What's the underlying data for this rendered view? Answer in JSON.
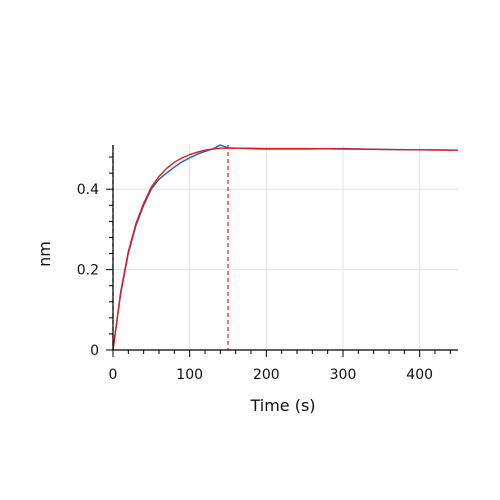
{
  "chart_data": {
    "type": "line",
    "title": "",
    "xlabel": "Time (s)",
    "ylabel": "nm",
    "xlim": [
      0,
      450
    ],
    "ylim": [
      0,
      0.51
    ],
    "x_ticks": [
      0,
      100,
      200,
      300,
      400
    ],
    "y_ticks": [
      0,
      0.2,
      0.4
    ],
    "x_tick_labels": [
      "0",
      "100",
      "200",
      "300",
      "400"
    ],
    "y_tick_labels": [
      "0",
      "0.2",
      "0.4"
    ],
    "grid": true,
    "legend": "none",
    "vertical_markers": [
      {
        "x": 0,
        "color": "#000000",
        "style": "dashed"
      },
      {
        "x": 150,
        "color": "#e41a1c",
        "style": "dashed"
      }
    ],
    "series": [
      {
        "color": "#1f5fbf",
        "x": [
          0,
          10,
          20,
          30,
          40,
          50,
          60,
          70,
          80,
          90,
          100,
          110,
          120,
          130,
          140,
          150,
          175,
          200,
          250,
          300,
          350,
          400,
          450
        ],
        "y": [
          0.0,
          0.14,
          0.24,
          0.31,
          0.36,
          0.4,
          0.425,
          0.44,
          0.455,
          0.468,
          0.478,
          0.487,
          0.494,
          0.5,
          0.51,
          0.503,
          0.501,
          0.5,
          0.5,
          0.501,
          0.499,
          0.498,
          0.497
        ]
      },
      {
        "color": "#e41a1c",
        "x": [
          0,
          10,
          20,
          30,
          40,
          50,
          60,
          70,
          80,
          90,
          100,
          110,
          120,
          130,
          140,
          150,
          175,
          200,
          250,
          300,
          350,
          400,
          450
        ],
        "y": [
          0.0,
          0.145,
          0.245,
          0.315,
          0.365,
          0.405,
          0.432,
          0.452,
          0.467,
          0.478,
          0.486,
          0.492,
          0.497,
          0.5,
          0.502,
          0.502,
          0.502,
          0.501,
          0.501,
          0.5,
          0.499,
          0.498,
          0.497
        ]
      }
    ]
  }
}
